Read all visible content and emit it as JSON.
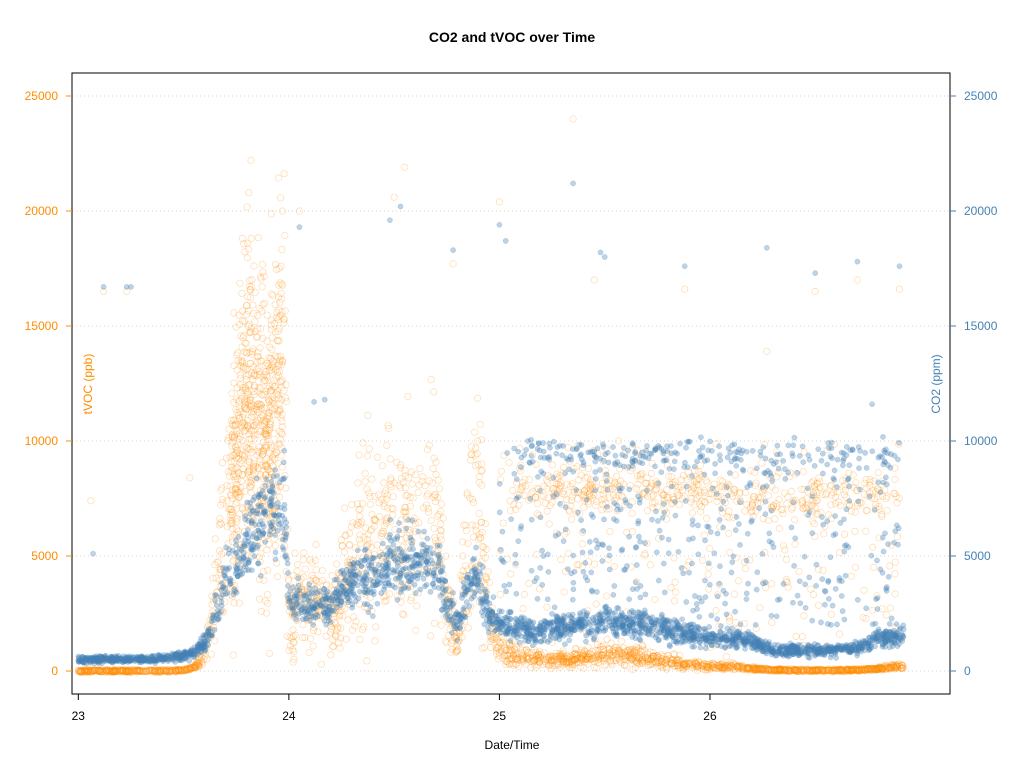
{
  "chart_data": {
    "type": "scatter",
    "title": "CO2 and tVOC over Time",
    "xlabel": "Date/Time",
    "ylabel_left": "tVOC (ppb)",
    "ylabel_right": "CO2 (ppm)",
    "x_ticks": [
      "23",
      "24",
      "25",
      "26"
    ],
    "x_tick_values": [
      23,
      24,
      25,
      26
    ],
    "xlim": [
      22.97,
      27.14
    ],
    "y_ticks": [
      0,
      5000,
      10000,
      15000,
      20000,
      25000
    ],
    "y_tick_labels": [
      "0",
      "5000",
      "10000",
      "15000",
      "20000",
      "25000"
    ],
    "ylim": [
      -1000,
      26000
    ],
    "grid": "horizontal dotted",
    "colors": {
      "tvoc": "#ff8c00",
      "co2": "#4682b4"
    },
    "series": [
      {
        "name": "tVOC (ppb)",
        "axis": "left",
        "marker": "open-circle",
        "x": [
          23.0,
          23.1,
          23.2,
          23.3,
          23.4,
          23.5,
          23.55,
          23.6,
          23.65,
          23.7,
          23.75,
          23.8,
          23.85,
          23.9,
          23.95,
          23.98,
          24.0,
          24.05,
          24.1,
          24.15,
          24.2,
          24.25,
          24.3,
          24.35,
          24.4,
          24.45,
          24.5,
          24.55,
          24.6,
          24.65,
          24.7,
          24.75,
          24.8,
          24.85,
          24.9,
          24.95,
          25.0,
          25.1,
          25.2,
          25.3,
          25.4,
          25.5,
          25.6,
          25.7,
          25.8,
          25.9,
          26.0,
          26.1,
          26.2,
          26.3,
          26.4,
          26.5,
          26.6,
          26.7,
          26.8,
          26.9
        ],
        "y": [
          0,
          0,
          0,
          0,
          0,
          30,
          150,
          600,
          3000,
          6000,
          9000,
          12000,
          11000,
          10000,
          12000,
          14000,
          2000,
          3500,
          3000,
          2500,
          2500,
          3500,
          5000,
          5500,
          6000,
          6500,
          7000,
          6500,
          6000,
          6500,
          7000,
          3000,
          1000,
          5000,
          8000,
          2000,
          1000,
          600,
          500,
          500,
          600,
          700,
          700,
          500,
          400,
          300,
          200,
          200,
          100,
          50,
          30,
          30,
          30,
          50,
          100,
          200
        ],
        "outliers_x": [
          23.06,
          23.12,
          23.23,
          23.53,
          23.82,
          23.97,
          24.05,
          24.5,
          24.55,
          24.78,
          25.0,
          25.35,
          25.45,
          25.88,
          26.27,
          26.5,
          26.7,
          26.9
        ],
        "outliers_y": [
          7400,
          16500,
          16500,
          8400,
          22200,
          20000,
          20000,
          20600,
          21900,
          17700,
          20400,
          24000,
          17000,
          16600,
          13900,
          16500,
          17000,
          16600
        ],
        "band_x": [
          25.1,
          25.3,
          25.5,
          25.7,
          25.9,
          26.1,
          26.3,
          26.5,
          26.7,
          26.9
        ],
        "band_y": [
          7900,
          8000,
          7900,
          8000,
          7900,
          7700,
          7500,
          7500,
          7600,
          7700
        ]
      },
      {
        "name": "CO2 (ppm)",
        "axis": "right",
        "marker": "filled-circle",
        "x": [
          23.0,
          23.1,
          23.2,
          23.3,
          23.4,
          23.5,
          23.55,
          23.6,
          23.65,
          23.7,
          23.75,
          23.8,
          23.85,
          23.9,
          23.95,
          23.98,
          24.0,
          24.05,
          24.1,
          24.15,
          24.2,
          24.25,
          24.3,
          24.35,
          24.4,
          24.45,
          24.5,
          24.55,
          24.6,
          24.65,
          24.7,
          24.75,
          24.8,
          24.85,
          24.9,
          24.95,
          25.0,
          25.1,
          25.2,
          25.3,
          25.4,
          25.5,
          25.6,
          25.7,
          25.8,
          25.9,
          26.0,
          26.1,
          26.2,
          26.3,
          26.4,
          26.5,
          26.6,
          26.7,
          26.8,
          26.9
        ],
        "y": [
          500,
          500,
          500,
          500,
          550,
          650,
          800,
          1200,
          2500,
          4000,
          4500,
          5500,
          6500,
          7000,
          7000,
          7000,
          3000,
          3000,
          2900,
          2800,
          2900,
          3500,
          4000,
          4000,
          4200,
          4500,
          5000,
          4800,
          4500,
          4800,
          5000,
          3000,
          2000,
          4000,
          4000,
          2500,
          2000,
          1800,
          1800,
          1900,
          2000,
          2100,
          2100,
          2100,
          1800,
          1600,
          1500,
          1400,
          1300,
          900,
          900,
          900,
          900,
          1000,
          1400,
          1500
        ],
        "outliers_x": [
          23.07,
          23.12,
          23.23,
          23.25,
          24.05,
          24.12,
          24.17,
          24.48,
          24.53,
          24.78,
          25.0,
          25.03,
          25.35,
          25.48,
          25.5,
          25.88,
          26.27,
          26.5,
          26.7,
          26.77,
          26.9
        ],
        "outliers_y": [
          5100,
          16700,
          16700,
          16700,
          19300,
          11700,
          11800,
          19600,
          20200,
          18300,
          19400,
          18700,
          21200,
          18200,
          18000,
          17600,
          18400,
          17300,
          17800,
          11600,
          17600
        ],
        "cloud_x_range": [
          25.0,
          26.9
        ],
        "cloud_y_range": [
          2000,
          10000
        ]
      }
    ]
  }
}
